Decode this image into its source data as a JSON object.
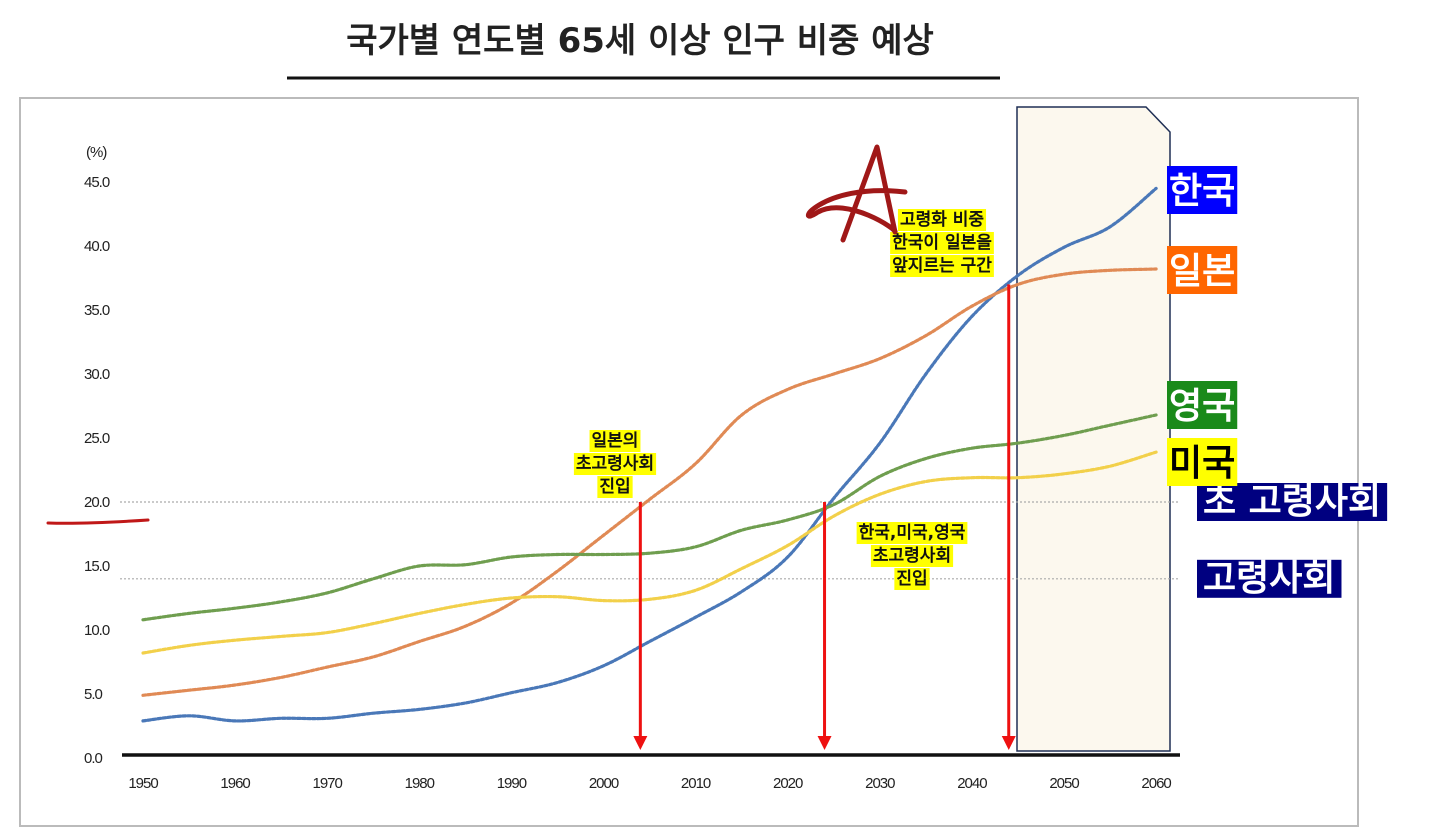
{
  "page_title": "국가별 연도별 65세 이상 인구 비중 예상",
  "chart_data": {
    "type": "line",
    "ylabel": "(%)",
    "ylim": [
      0,
      47
    ],
    "xlim": [
      1950,
      2060
    ],
    "yticks": [
      "0.0",
      "5.0",
      "10.0",
      "15.0",
      "20.0",
      "25.0",
      "30.0",
      "35.0",
      "40.0",
      "45.0"
    ],
    "xticks": [
      "1950",
      "1960",
      "1970",
      "1980",
      "1990",
      "2000",
      "2010",
      "2020",
      "2030",
      "2040",
      "2050",
      "2060"
    ],
    "grid": false,
    "legend_placement": "right",
    "reference_lines": [
      {
        "label": "초  고령사회",
        "value": 20.0,
        "color": "#000080"
      },
      {
        "label": "고령사회",
        "value": 14.0,
        "color": "#000080"
      }
    ],
    "series": [
      {
        "name": "한국",
        "color": "#4a78b8",
        "label_bg": "#0000ff",
        "label_color": "#ffffff",
        "points": [
          [
            1950,
            2.9
          ],
          [
            1955,
            3.3
          ],
          [
            1960,
            2.9
          ],
          [
            1965,
            3.1
          ],
          [
            1970,
            3.1
          ],
          [
            1975,
            3.5
          ],
          [
            1980,
            3.8
          ],
          [
            1985,
            4.3
          ],
          [
            1990,
            5.1
          ],
          [
            1995,
            5.9
          ],
          [
            2000,
            7.2
          ],
          [
            2005,
            9.1
          ],
          [
            2010,
            11.0
          ],
          [
            2015,
            13.0
          ],
          [
            2020,
            15.7
          ],
          [
            2025,
            20.3
          ],
          [
            2030,
            24.6
          ],
          [
            2035,
            30.0
          ],
          [
            2040,
            34.5
          ],
          [
            2045,
            37.7
          ],
          [
            2050,
            39.9
          ],
          [
            2055,
            41.5
          ],
          [
            2060,
            44.5
          ]
        ]
      },
      {
        "name": "일본",
        "color": "#e08a55",
        "label_bg": "#ff6600",
        "label_color": "#ffffff",
        "points": [
          [
            1950,
            4.9
          ],
          [
            1955,
            5.3
          ],
          [
            1960,
            5.7
          ],
          [
            1965,
            6.3
          ],
          [
            1970,
            7.1
          ],
          [
            1975,
            7.9
          ],
          [
            1980,
            9.1
          ],
          [
            1985,
            10.3
          ],
          [
            1990,
            12.1
          ],
          [
            1995,
            14.6
          ],
          [
            2000,
            17.4
          ],
          [
            2005,
            20.2
          ],
          [
            2010,
            23.0
          ],
          [
            2015,
            26.8
          ],
          [
            2020,
            28.8
          ],
          [
            2025,
            30.0
          ],
          [
            2030,
            31.2
          ],
          [
            2035,
            33.0
          ],
          [
            2040,
            35.3
          ],
          [
            2045,
            37.0
          ],
          [
            2050,
            37.8
          ],
          [
            2055,
            38.1
          ],
          [
            2060,
            38.2
          ]
        ]
      },
      {
        "name": "영국",
        "color": "#6f9e4f",
        "label_bg": "#1a8a1a",
        "label_color": "#ffffff",
        "points": [
          [
            1950,
            10.8
          ],
          [
            1955,
            11.3
          ],
          [
            1960,
            11.7
          ],
          [
            1965,
            12.2
          ],
          [
            1970,
            12.9
          ],
          [
            1975,
            14.0
          ],
          [
            1980,
            15.0
          ],
          [
            1985,
            15.1
          ],
          [
            1990,
            15.7
          ],
          [
            1995,
            15.9
          ],
          [
            2000,
            15.9
          ],
          [
            2005,
            16.0
          ],
          [
            2010,
            16.5
          ],
          [
            2015,
            17.8
          ],
          [
            2020,
            18.6
          ],
          [
            2025,
            19.8
          ],
          [
            2030,
            22.0
          ],
          [
            2035,
            23.4
          ],
          [
            2040,
            24.2
          ],
          [
            2045,
            24.6
          ],
          [
            2050,
            25.2
          ],
          [
            2055,
            26.0
          ],
          [
            2060,
            26.8
          ]
        ]
      },
      {
        "name": "미국",
        "color": "#f2d04a",
        "label_bg": "#ffff00",
        "label_color": "#000000",
        "points": [
          [
            1950,
            8.2
          ],
          [
            1955,
            8.8
          ],
          [
            1960,
            9.2
          ],
          [
            1965,
            9.5
          ],
          [
            1970,
            9.8
          ],
          [
            1975,
            10.5
          ],
          [
            1980,
            11.3
          ],
          [
            1985,
            12.0
          ],
          [
            1990,
            12.5
          ],
          [
            1995,
            12.6
          ],
          [
            2000,
            12.3
          ],
          [
            2005,
            12.4
          ],
          [
            2010,
            13.1
          ],
          [
            2015,
            14.8
          ],
          [
            2020,
            16.6
          ],
          [
            2025,
            18.9
          ],
          [
            2030,
            20.6
          ],
          [
            2035,
            21.6
          ],
          [
            2040,
            21.9
          ],
          [
            2045,
            21.9
          ],
          [
            2050,
            22.2
          ],
          [
            2055,
            22.8
          ],
          [
            2060,
            23.9
          ]
        ]
      }
    ],
    "annotations": [
      {
        "lines": [
          "일본의",
          "초고령사회",
          "진입"
        ],
        "x": 2004,
        "y": 20.0
      },
      {
        "lines": [
          "한국,미국,영국",
          "초고령사회",
          "진입"
        ],
        "x": 2024,
        "y": 20.0
      },
      {
        "lines": [
          "고령화 비중",
          "한국이 일본을",
          "앞지르는 구간"
        ],
        "x": 2044,
        "y": 37.0
      }
    ],
    "highlight_region": {
      "x_start": 2044,
      "x_end": 2060
    },
    "arrow_color": "#ee1111"
  }
}
